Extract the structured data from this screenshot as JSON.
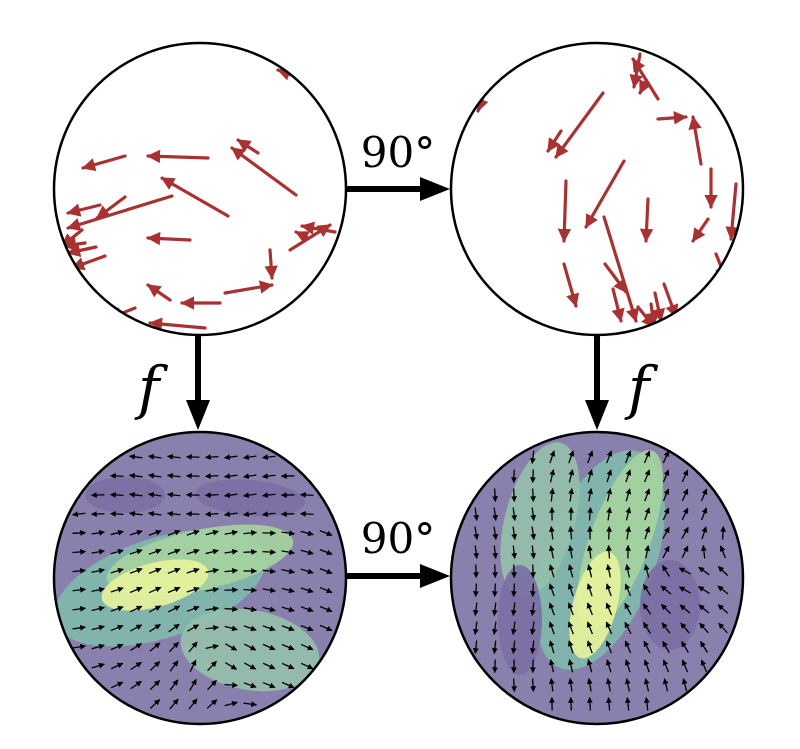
{
  "labels": {
    "rotation_top": "90°",
    "rotation_bottom": "90°",
    "map_left": "f",
    "map_right": "f"
  },
  "colors": {
    "background": "#ffffff",
    "circle_stroke": "#000000",
    "input_arrow": "#a83232",
    "output_arrow": "#000000",
    "connector_arrow": "#000000",
    "field_low": "#8a80ad",
    "field_mid": "#7fb9ad",
    "field_high": "#e7f39b"
  },
  "panels": [
    {
      "id": "input",
      "role": "input point set",
      "arrow_color": "red"
    },
    {
      "id": "input-rotated",
      "role": "rotated input point set",
      "arrow_color": "red"
    },
    {
      "id": "output",
      "role": "output vector field",
      "arrow_color": "black"
    },
    {
      "id": "output-rotated",
      "role": "rotated output vector field",
      "arrow_color": "black"
    }
  ],
  "connectors": [
    {
      "id": "top-rotation",
      "from": "input",
      "to": "input-rotated",
      "label": "rotation_top"
    },
    {
      "id": "bottom-rotation",
      "from": "output",
      "to": "output-rotated",
      "label": "rotation_bottom"
    },
    {
      "id": "left-map",
      "from": "input",
      "to": "output",
      "label": "map_left"
    },
    {
      "id": "right-map",
      "from": "input-rotated",
      "to": "output-rotated",
      "label": "map_right"
    }
  ]
}
